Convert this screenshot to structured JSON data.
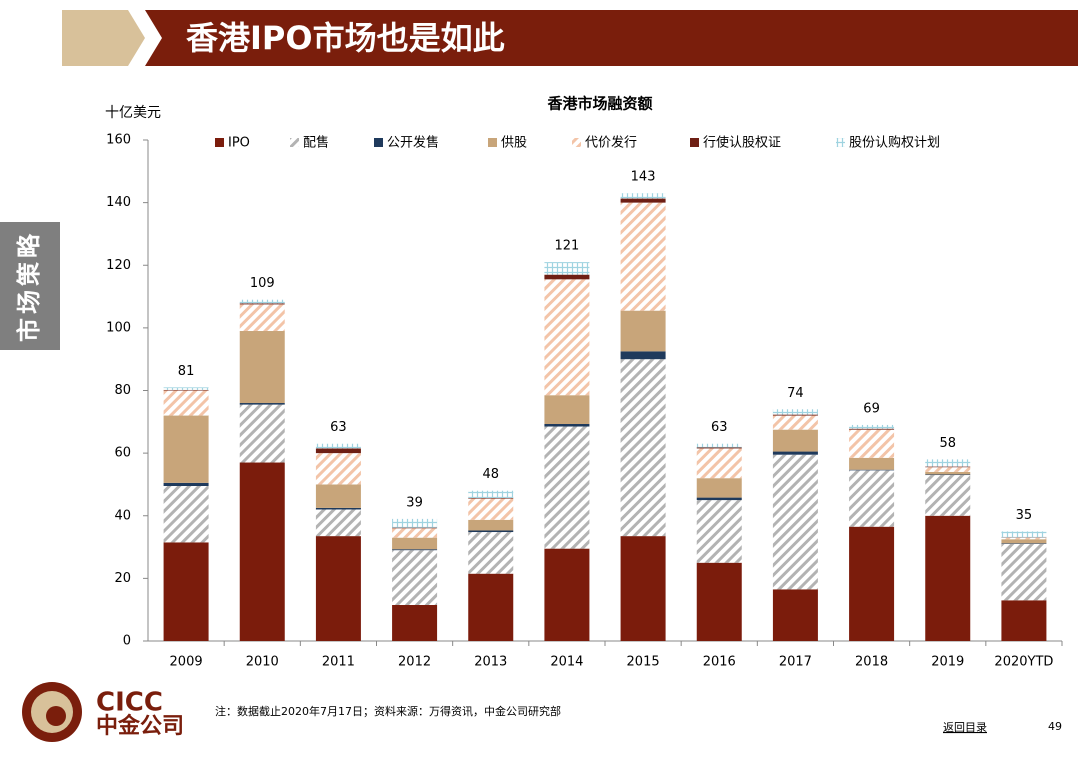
{
  "header": {
    "title": "香港IPO市场也是如此"
  },
  "side_label": "市场策略",
  "chart_data": {
    "type": "stacked-bar",
    "title": "香港市场融资额",
    "y_label": "十亿美元",
    "categories": [
      "2009",
      "2010",
      "2011",
      "2012",
      "2013",
      "2014",
      "2015",
      "2016",
      "2017",
      "2018",
      "2019",
      "2020YTD"
    ],
    "series": [
      {
        "name": "IPO",
        "color": "#7b1c0c",
        "pattern": "solid",
        "values": [
          31.5,
          57,
          33.5,
          11.5,
          21.5,
          29.5,
          33.5,
          25,
          16.5,
          36.5,
          40,
          13
        ]
      },
      {
        "name": "配售",
        "color": "#b3b3b3",
        "pattern": "hatch",
        "values": [
          18,
          18.5,
          8.5,
          17.5,
          13.3,
          39,
          56.5,
          20,
          43,
          18,
          13,
          18
        ]
      },
      {
        "name": "公开发售",
        "color": "#1f3a5c",
        "pattern": "solid",
        "values": [
          1,
          0.5,
          0.5,
          0.3,
          0.5,
          0.8,
          2.5,
          0.8,
          1,
          0.2,
          0.2,
          0.2
        ]
      },
      {
        "name": "供股",
        "color": "#c8a57a",
        "pattern": "solid",
        "values": [
          21.5,
          23,
          7.5,
          3.7,
          3.4,
          9.2,
          13,
          6.2,
          7,
          3.8,
          0.8,
          1.3
        ]
      },
      {
        "name": "代价发行",
        "color": "#f3c4a8",
        "pattern": "hatch",
        "values": [
          8,
          8.5,
          10,
          3,
          6.8,
          37,
          34.5,
          9.5,
          4.5,
          9,
          1.5,
          0.5
        ]
      },
      {
        "name": "行使认股权证",
        "color": "#6e1f14",
        "pattern": "solid",
        "values": [
          0.2,
          0.3,
          1.5,
          0.2,
          0.2,
          1.5,
          1.3,
          0.3,
          0.3,
          0.3,
          0.2,
          0.1
        ]
      },
      {
        "name": "股份认购权计划",
        "color": "#9fd3e0",
        "pattern": "grid",
        "values": [
          0.8,
          1.2,
          1.5,
          2.8,
          2.3,
          4,
          1.7,
          1.2,
          1.7,
          1.2,
          2.3,
          1.9
        ]
      }
    ],
    "totals": [
      81,
      109,
      63,
      39,
      48,
      121,
      143,
      63,
      74,
      69,
      58,
      35
    ],
    "ylim": [
      0,
      160
    ],
    "yticks": [
      0,
      20,
      40,
      60,
      80,
      100,
      120,
      140,
      160
    ]
  },
  "footer": {
    "note": "注：数据截止2020年7月17日；资料来源：万得资讯，中金公司研究部",
    "back_link": "返回目录",
    "page_number": "49",
    "logo_en": "CICC",
    "logo_cn": "中金公司"
  }
}
